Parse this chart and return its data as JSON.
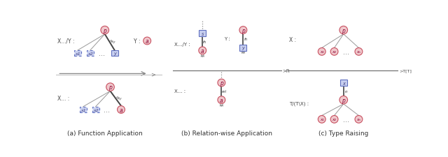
{
  "fig_width": 6.4,
  "fig_height": 2.26,
  "background": "#ffffff",
  "cc": "#f0c8cc",
  "ce": "#c85060",
  "rc": "#c8d0f0",
  "re": "#6070c0",
  "gray": "#999999",
  "blk": "#444444",
  "dot_color": "#888888",
  "caption_a": "(a) Function Application",
  "caption_b": "(b) Relation-wise Application",
  "caption_c": "(c) Type Raising"
}
